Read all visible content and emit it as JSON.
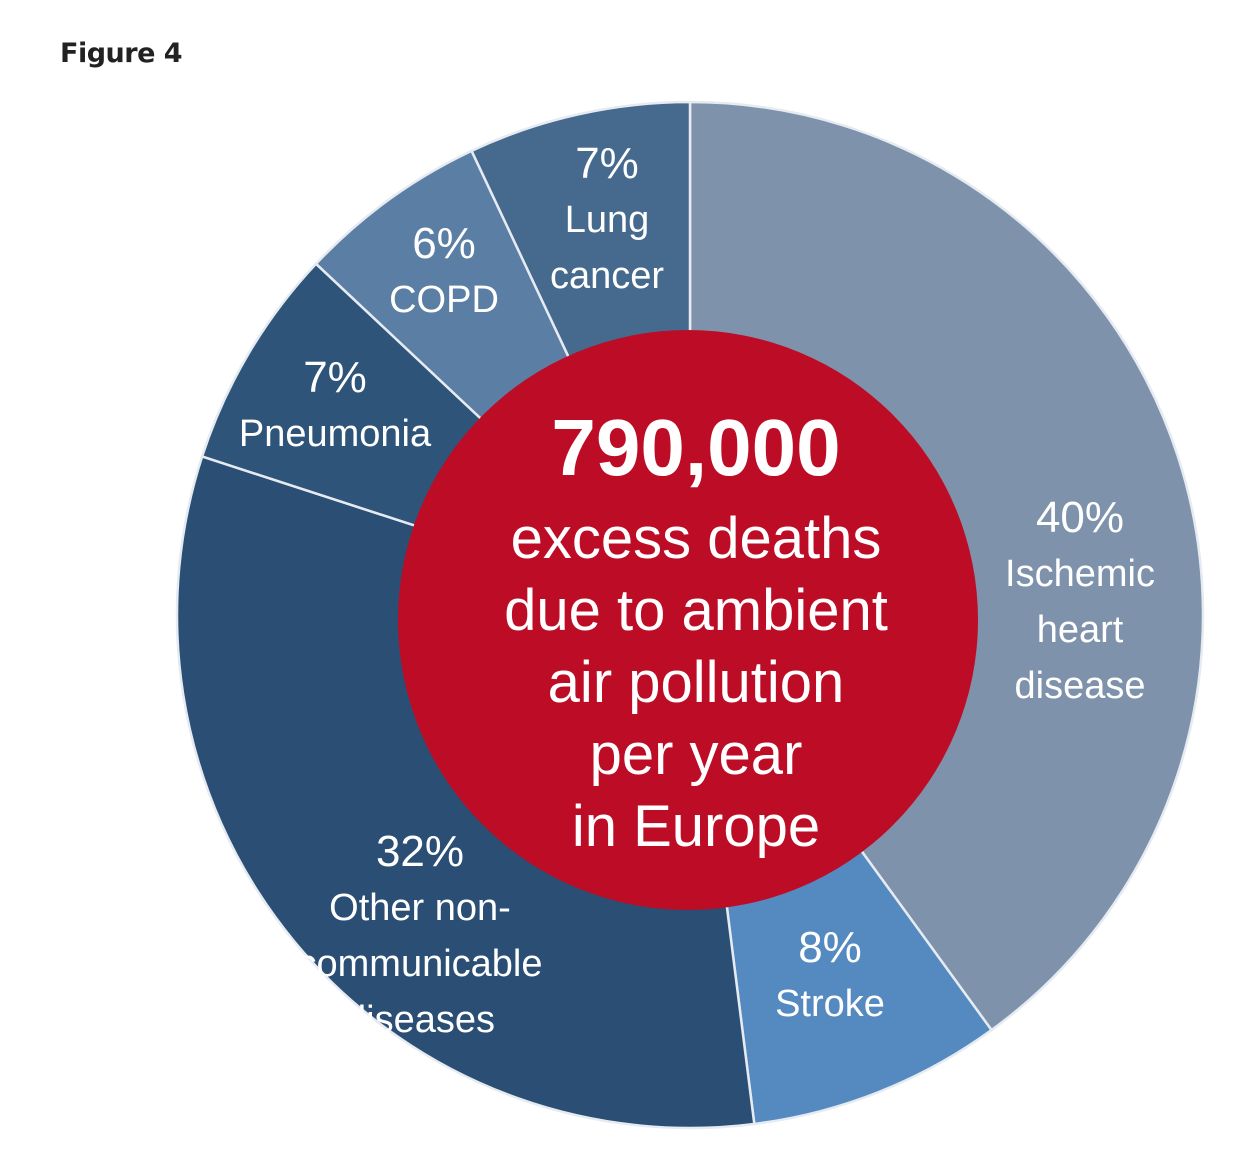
{
  "figure_label": "Figure 4",
  "chart_data": {
    "type": "pie",
    "donut": true,
    "categories": [
      "Ischemic heart disease",
      "Stroke",
      "Other non-communicable diseases",
      "Pneumonia",
      "COPD",
      "Lung cancer"
    ],
    "values": [
      40,
      8,
      32,
      7,
      6,
      7
    ],
    "unit": "%",
    "slices": [
      {
        "pct": "40%",
        "label_lines": [
          "Ischemic",
          "heart",
          "disease"
        ],
        "color": "#7f92ab"
      },
      {
        "pct": "8%",
        "label_lines": [
          "Stroke"
        ],
        "color": "#558ac1"
      },
      {
        "pct": "32%",
        "label_lines": [
          "Other non-",
          "communicable",
          "diseases"
        ],
        "color": "#2b4e75"
      },
      {
        "pct": "7%",
        "label_lines": [
          "Pneumonia"
        ],
        "color": "#2e5479"
      },
      {
        "pct": "6%",
        "label_lines": [
          "COPD"
        ],
        "color": "#5b7ea4"
      },
      {
        "pct": "7%",
        "label_lines": [
          "Lung",
          "cancer"
        ],
        "color": "#46698e"
      }
    ],
    "center": {
      "value": "790,000",
      "lines": [
        "excess deaths",
        "due to ambient",
        "air pollution",
        "per year",
        "in Europe"
      ],
      "color": "#bd0c26"
    },
    "separator_color": "#e6ebf2"
  }
}
